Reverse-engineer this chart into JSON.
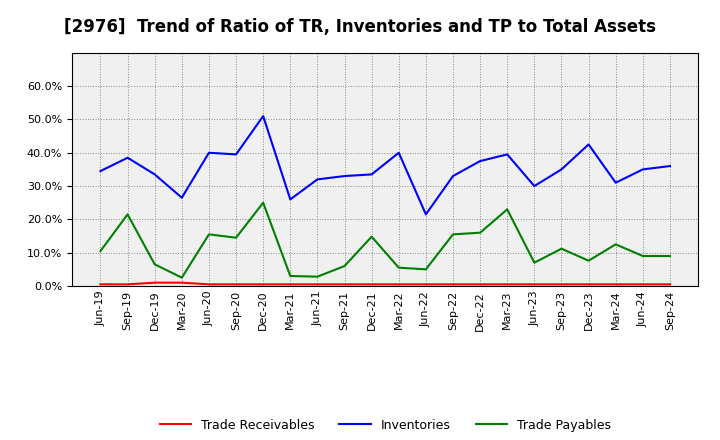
{
  "title": "[2976]  Trend of Ratio of TR, Inventories and TP to Total Assets",
  "x_labels": [
    "Jun-19",
    "Sep-19",
    "Dec-19",
    "Mar-20",
    "Jun-20",
    "Sep-20",
    "Dec-20",
    "Mar-21",
    "Jun-21",
    "Sep-21",
    "Dec-21",
    "Mar-22",
    "Jun-22",
    "Sep-22",
    "Dec-22",
    "Mar-23",
    "Jun-23",
    "Sep-23",
    "Dec-23",
    "Mar-24",
    "Jun-24",
    "Sep-24"
  ],
  "trade_receivables": [
    0.005,
    0.005,
    0.01,
    0.01,
    0.005,
    0.005,
    0.005,
    0.005,
    0.005,
    0.005,
    0.005,
    0.005,
    0.005,
    0.005,
    0.005,
    0.005,
    0.005,
    0.005,
    0.005,
    0.005,
    0.005,
    0.005
  ],
  "inventories": [
    0.345,
    0.385,
    0.335,
    0.265,
    0.4,
    0.395,
    0.51,
    0.26,
    0.32,
    0.33,
    0.335,
    0.4,
    0.215,
    0.33,
    0.375,
    0.395,
    0.3,
    0.35,
    0.425,
    0.31,
    0.35,
    0.36
  ],
  "trade_payables": [
    0.105,
    0.215,
    0.065,
    0.025,
    0.155,
    0.145,
    0.25,
    0.03,
    0.028,
    0.06,
    0.148,
    0.055,
    0.05,
    0.155,
    0.16,
    0.23,
    0.07,
    0.112,
    0.076,
    0.125,
    0.09,
    0.09
  ],
  "tr_color": "#ff0000",
  "inv_color": "#0000ff",
  "tp_color": "#008000",
  "ylim": [
    0.0,
    0.7
  ],
  "yticks": [
    0.0,
    0.1,
    0.2,
    0.3,
    0.4,
    0.5,
    0.6
  ],
  "bg_color": "#ffffff",
  "plot_bg_color": "#f0f0f0",
  "grid_color": "#888888",
  "title_fontsize": 12,
  "tick_fontsize": 8,
  "legend_fontsize": 9
}
